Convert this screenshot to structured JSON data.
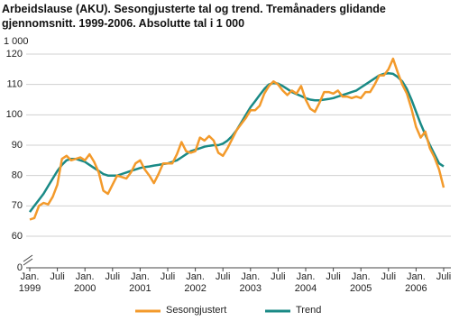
{
  "chart_data": {
    "type": "line",
    "title": "Arbeidslause (AKU). Sesongjusterte tal og trend. Tremånaders glidande gjennomsnitt. 1999-2006. Absolutte tal i 1 000",
    "y_label": "1 000",
    "categories": [
      "Jan. 1999",
      null,
      null,
      null,
      null,
      null,
      "Juli",
      null,
      null,
      null,
      null,
      null,
      "Jan. 2000",
      null,
      null,
      null,
      null,
      null,
      "Juli",
      null,
      null,
      null,
      null,
      null,
      "Jan. 2001",
      null,
      null,
      null,
      null,
      null,
      "Juli",
      null,
      null,
      null,
      null,
      null,
      "Jan. 2002",
      null,
      null,
      null,
      null,
      null,
      "Juli",
      null,
      null,
      null,
      null,
      null,
      "Jan. 2003",
      null,
      null,
      null,
      null,
      null,
      "Juli",
      null,
      null,
      null,
      null,
      null,
      "Jan. 2004",
      null,
      null,
      null,
      null,
      null,
      "Juli",
      null,
      null,
      null,
      null,
      null,
      "Jan. 2005",
      null,
      null,
      null,
      null,
      null,
      "Juli",
      null,
      null,
      null,
      null,
      null,
      "Jan. 2006",
      null,
      null,
      null,
      null,
      null,
      "Juli"
    ],
    "series": [
      {
        "name": "Sesongjustert",
        "color": "#f39a2b",
        "values": [
          65.5,
          66,
          70,
          71,
          70.5,
          73,
          77,
          85.5,
          86.5,
          85,
          85.5,
          86,
          85,
          87,
          84.5,
          81,
          75,
          74,
          77,
          80,
          79.5,
          79,
          81,
          84,
          85,
          82,
          80,
          77.5,
          80.5,
          84,
          84,
          84,
          87,
          91,
          88,
          87.5,
          88,
          92.5,
          91.5,
          93,
          91.5,
          87.5,
          86.5,
          89,
          92,
          95,
          97,
          99,
          101.5,
          101.5,
          103,
          107,
          109.5,
          111,
          110,
          108,
          106.5,
          108,
          107,
          109.5,
          105,
          102,
          101,
          104,
          107.5,
          107.5,
          107,
          108,
          106,
          106,
          105.5,
          106,
          105.5,
          107.5,
          107.5,
          110,
          113,
          113,
          115,
          118.5,
          114,
          110,
          107,
          102,
          96,
          92.5,
          94.5,
          89,
          86,
          82,
          76
        ]
      },
      {
        "name": "Trend",
        "color": "#1a8a86",
        "values": [
          68,
          70,
          72,
          74,
          76.5,
          79,
          81.5,
          83.5,
          85,
          85.5,
          85.5,
          85,
          84.5,
          83.5,
          82.5,
          81.5,
          80.5,
          80,
          80,
          80,
          80.5,
          81,
          81.5,
          82,
          82.5,
          82.8,
          83,
          83.3,
          83.5,
          83.8,
          84,
          84.5,
          85,
          86,
          87,
          88,
          88.5,
          89,
          89.5,
          89.8,
          90,
          90,
          90.5,
          91.5,
          93,
          95,
          97.5,
          100,
          102.5,
          104.5,
          106.5,
          108.5,
          110,
          110.5,
          110.3,
          109.5,
          108.5,
          107.5,
          106.8,
          106.2,
          105.5,
          105,
          104.8,
          104.8,
          105,
          105.2,
          105.5,
          106,
          106.5,
          107,
          107.5,
          108,
          109,
          110,
          111,
          112,
          113,
          113.5,
          113.7,
          113.5,
          112.5,
          111,
          108.5,
          105,
          101,
          97,
          93.5,
          90,
          87,
          84,
          83
        ]
      }
    ],
    "ylim": [
      0,
      120
    ],
    "yticks": [
      0,
      60,
      70,
      80,
      90,
      100,
      110,
      120
    ],
    "axis_break": true,
    "grid": true
  }
}
